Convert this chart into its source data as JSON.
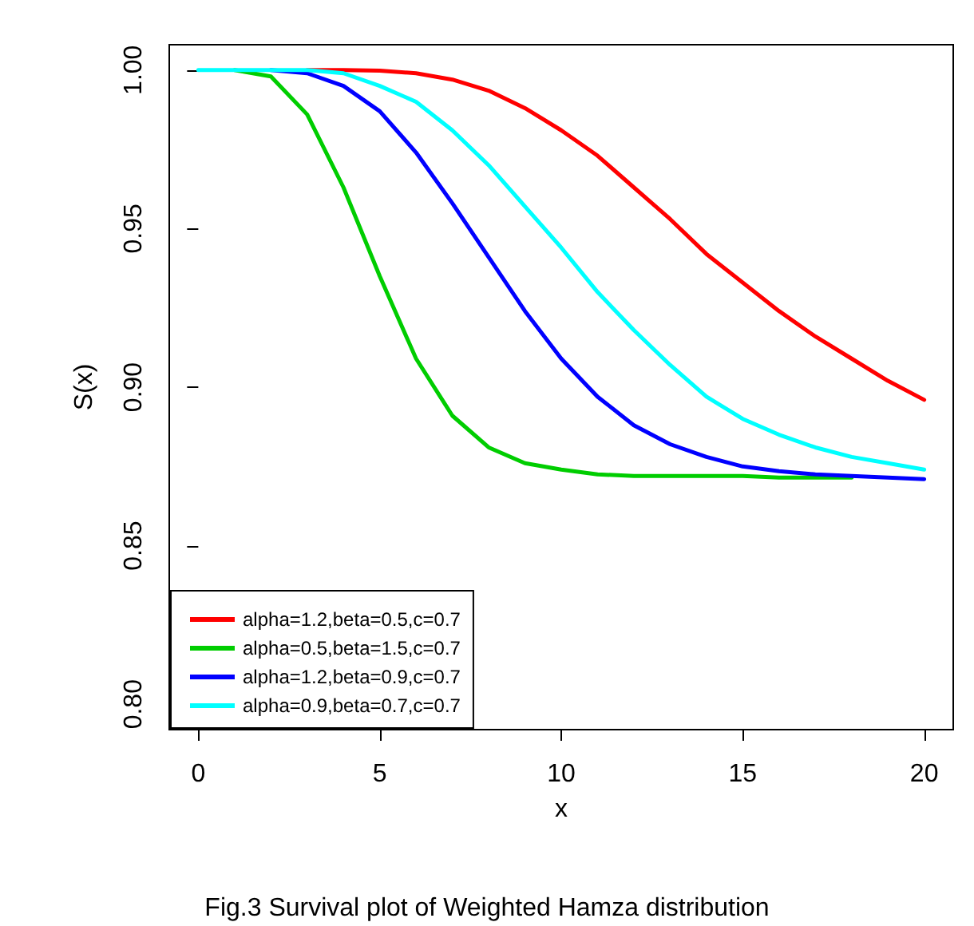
{
  "chart_data": {
    "type": "line",
    "title": "Fig.3 Survival plot of Weighted Hamza distribution",
    "xlabel": "x",
    "ylabel": "S(x)",
    "x": [
      0,
      1,
      2,
      3,
      4,
      5,
      6,
      7,
      8,
      9,
      10,
      11,
      12,
      13,
      14,
      15,
      16,
      17,
      18,
      19,
      20
    ],
    "series": [
      {
        "name": "alpha=1.2,beta=0.5,c=0.7",
        "color": "#ff0000",
        "values": [
          null,
          null,
          null,
          1,
          1,
          0.9998,
          0.999,
          0.997,
          0.9935,
          0.988,
          0.981,
          0.973,
          0.963,
          0.953,
          0.942,
          0.933,
          0.924,
          0.916,
          0.909,
          0.902,
          0.896
        ]
      },
      {
        "name": "alpha=0.5,beta=1.5,c=0.7",
        "color": "#00cd00",
        "values": [
          null,
          1,
          0.998,
          0.986,
          0.963,
          0.935,
          0.909,
          0.891,
          0.881,
          0.876,
          0.874,
          0.8725,
          0.872,
          0.872,
          0.872,
          0.872,
          0.8715,
          0.8715,
          0.8715,
          null,
          null
        ]
      },
      {
        "name": "alpha=1.2,beta=0.9,c=0.7",
        "color": "#0000ff",
        "values": [
          null,
          null,
          1,
          0.999,
          0.995,
          0.987,
          0.974,
          0.958,
          0.941,
          0.924,
          0.909,
          0.897,
          0.888,
          0.882,
          0.878,
          0.875,
          0.8735,
          0.8725,
          0.872,
          0.8715,
          0.871
        ]
      },
      {
        "name": "alpha=0.9,beta=0.7,c=0.7",
        "color": "#00ffff",
        "values": [
          1,
          1,
          1,
          1,
          0.999,
          0.995,
          0.99,
          0.981,
          0.97,
          0.957,
          0.944,
          0.93,
          0.918,
          0.907,
          0.897,
          0.89,
          0.885,
          0.881,
          0.878,
          0.876,
          0.874
        ]
      }
    ],
    "xlim": [
      -0.8,
      20.8
    ],
    "xticks": [
      0,
      5,
      10,
      15,
      20
    ],
    "ylim": [
      0.792,
      1.008
    ],
    "yticks": [
      {
        "value": 0.8,
        "label": "0.80"
      },
      {
        "value": 0.85,
        "label": "0.85"
      },
      {
        "value": 0.9,
        "label": "0.90"
      },
      {
        "value": 0.95,
        "label": "0.95"
      },
      {
        "value": 1,
        "label": "1.00"
      }
    ],
    "legend": "bottom left",
    "grid": false,
    "marker": "none",
    "line_style": "solid"
  }
}
